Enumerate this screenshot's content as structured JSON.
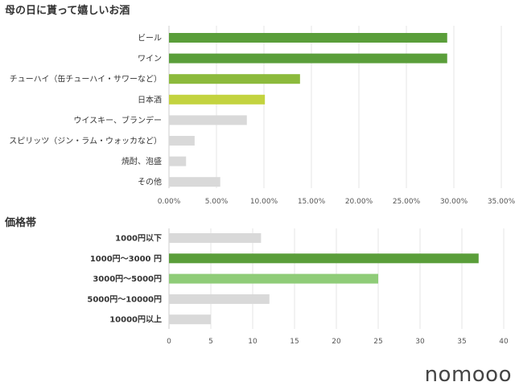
{
  "chart_data": [
    {
      "type": "bar",
      "orientation": "horizontal",
      "title": "母の日に貰って嬉しいお酒",
      "categories": [
        "ビール",
        "ワイン",
        "チューハイ（缶チューハイ・サワーなど）",
        "日本酒",
        "ウイスキー、ブランデー",
        "スピリッツ（ジン・ラム・ウォッカなど）",
        "焼酎、泡盛",
        "その他"
      ],
      "values": [
        29.3,
        29.3,
        13.8,
        10.1,
        8.2,
        2.7,
        1.8,
        5.4
      ],
      "bar_colors": [
        "#5a9e3a",
        "#5a9e3a",
        "#8cba3c",
        "#c3d33f",
        "#d9d9d9",
        "#d9d9d9",
        "#d9d9d9",
        "#d9d9d9"
      ],
      "xlim": [
        0,
        35
      ],
      "xticks": [
        0,
        5,
        10,
        15,
        20,
        25,
        30,
        35
      ],
      "xtick_labels": [
        "0.00%",
        "5.00%",
        "10.00%",
        "15.00%",
        "20.00%",
        "25.00%",
        "30.00%",
        "35.00%"
      ],
      "grid": true
    },
    {
      "type": "bar",
      "orientation": "horizontal",
      "title": "価格帯",
      "categories": [
        "1000円以下",
        "1000円～3000 円",
        "3000円～5000円",
        "5000円～10000円",
        "10000円以上"
      ],
      "values": [
        11,
        37,
        25,
        12,
        5
      ],
      "bar_colors": [
        "#d9d9d9",
        "#5a9e3a",
        "#8fcc78",
        "#d9d9d9",
        "#d9d9d9"
      ],
      "xlim": [
        0,
        40
      ],
      "xticks": [
        0,
        5,
        10,
        15,
        20,
        25,
        30,
        35,
        40
      ],
      "xtick_labels": [
        "0",
        "5",
        "10",
        "15",
        "20",
        "25",
        "30",
        "35",
        "40"
      ],
      "grid": true
    }
  ],
  "brand": {
    "logo_text": "nomooo"
  }
}
